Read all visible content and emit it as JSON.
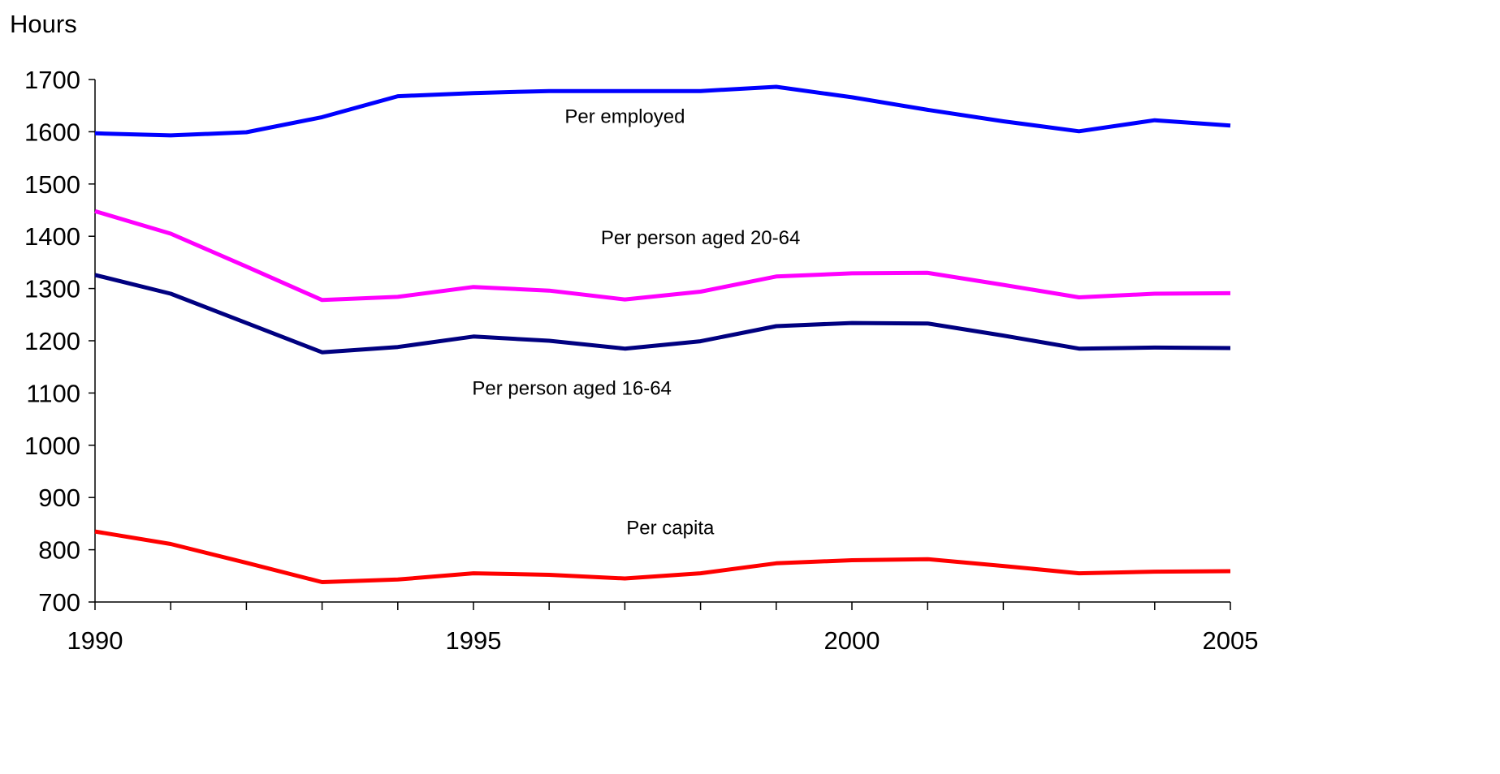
{
  "chart_data": {
    "type": "line",
    "title": "",
    "ylabel": "Hours",
    "xlabel": "",
    "ylim": [
      700,
      1700
    ],
    "yticks": [
      700,
      800,
      900,
      1000,
      1100,
      1200,
      1300,
      1400,
      1500,
      1600,
      1700
    ],
    "xlim": [
      1990,
      2005
    ],
    "xtick_labels": [
      1990,
      1995,
      2000,
      2005
    ],
    "x": [
      1990,
      1991,
      1992,
      1993,
      1994,
      1995,
      1996,
      1997,
      1998,
      1999,
      2000,
      2001,
      2002,
      2003,
      2004,
      2005
    ],
    "grid": false,
    "legend": "none",
    "series": [
      {
        "name": "Per employed",
        "color": "#0000FF",
        "values": [
          1597,
          1593,
          1599,
          1628,
          1668,
          1674,
          1678,
          1678,
          1678,
          1686,
          1666,
          1642,
          1620,
          1601,
          1622,
          1612
        ]
      },
      {
        "name": "Per person aged 20-64",
        "color": "#FF00FF",
        "values": [
          1448,
          1405,
          1342,
          1278,
          1284,
          1303,
          1296,
          1279,
          1294,
          1323,
          1329,
          1330,
          1307,
          1283,
          1290,
          1291
        ]
      },
      {
        "name": "Per person aged 16-64",
        "color": "#000080",
        "values": [
          1326,
          1290,
          1234,
          1178,
          1188,
          1208,
          1200,
          1185,
          1199,
          1228,
          1234,
          1233,
          1210,
          1185,
          1187,
          1186
        ]
      },
      {
        "name": "Per capita",
        "color": "#FF0000",
        "values": [
          835,
          811,
          775,
          738,
          743,
          755,
          752,
          745,
          755,
          774,
          780,
          782,
          769,
          755,
          758,
          759
        ]
      }
    ]
  }
}
